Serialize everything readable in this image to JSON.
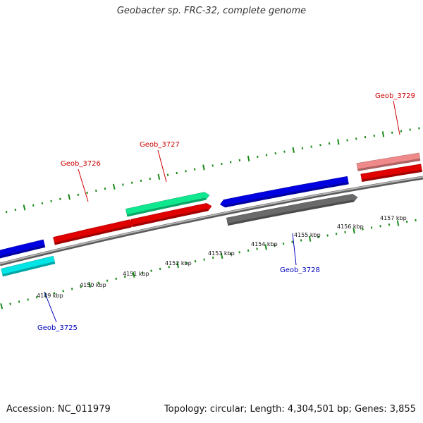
{
  "title": "Geobacter sp. FRC-32, complete genome",
  "footer": {
    "accession": "Accession: NC_011979",
    "summary": "Topology: circular; Length: 4,304,501 bp; Genes: 3,855"
  },
  "colors": {
    "backbone": "#8c8c8c",
    "tick": "#1a8a1a",
    "label_red": "#cc0000",
    "label_blue": "#0000bb"
  },
  "chart_data": {
    "type": "genome_map",
    "ticks_kbp": [
      "4149 kbp",
      "4150 kbp",
      "4151 kbp",
      "4152 kbp",
      "4153 kbp",
      "4154 kbp",
      "4155 kbp",
      "4156 kbp",
      "4157 kbp"
    ],
    "genes": [
      {
        "label": "Geob_3725",
        "color": "#00e5e5"
      },
      {
        "label": "Geob_3726",
        "color": "#e00000"
      },
      {
        "label": "Geob_3727",
        "color": "#10e890"
      },
      {
        "label": "Geob_3728",
        "color": "#0000e0"
      },
      {
        "label": "Geob_3729",
        "color": "#f08a8a"
      }
    ]
  }
}
